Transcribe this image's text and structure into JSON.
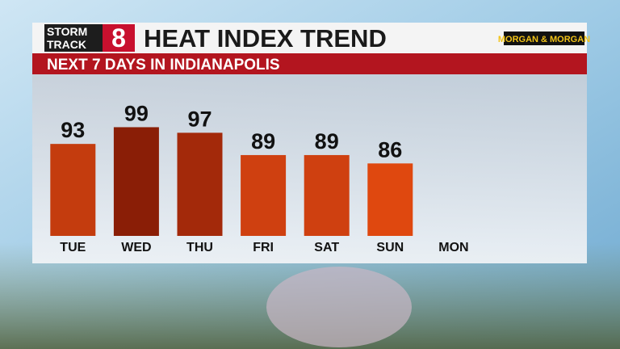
{
  "chart_data": {
    "type": "bar",
    "title": "HEAT INDEX TREND",
    "subtitle": "NEXT 7 DAYS IN INDIANAPOLIS",
    "categories": [
      "TUE",
      "WED",
      "THU",
      "FRI",
      "SAT",
      "SUN",
      "MON"
    ],
    "values": [
      93,
      99,
      97,
      89,
      89,
      86,
      null
    ],
    "colors": [
      "#c43c0e",
      "#8a1e06",
      "#a3290a",
      "#cf4010",
      "#cf4010",
      "#df480f",
      null
    ],
    "ylim": [
      60,
      100
    ]
  },
  "branding": {
    "logo": [
      "STORM",
      "TRACK",
      "8"
    ],
    "sponsor": "MORGAN & MORGAN"
  }
}
